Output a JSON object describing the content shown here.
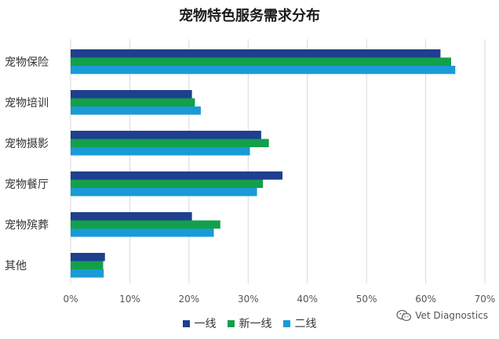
{
  "chart_data": {
    "type": "bar",
    "orientation": "horizontal",
    "title": "宠物特色服务需求分布",
    "categories": [
      "宠物保险",
      "宠物培训",
      "宠物摄影",
      "宠物餐厅",
      "宠物殡葬",
      "其他"
    ],
    "series": [
      {
        "name": "一线",
        "color": "#1f3f8f",
        "values": [
          62.5,
          20.5,
          32.2,
          35.8,
          20.5,
          5.8
        ]
      },
      {
        "name": "新一线",
        "color": "#12a04a",
        "values": [
          64.3,
          21.0,
          33.5,
          32.5,
          25.3,
          5.5
        ]
      },
      {
        "name": "二线",
        "color": "#1a9ad6",
        "values": [
          65.0,
          22.0,
          30.3,
          31.5,
          24.2,
          5.6
        ]
      }
    ],
    "xlim": [
      0,
      70
    ],
    "xticks": [
      "0%",
      "10%",
      "20%",
      "30%",
      "40%",
      "50%",
      "60%",
      "70%"
    ],
    "grid": "vertical",
    "legend": "bottom-center"
  },
  "watermark": {
    "text": "Vet Diagnostics",
    "icon": "wechat-icon"
  }
}
